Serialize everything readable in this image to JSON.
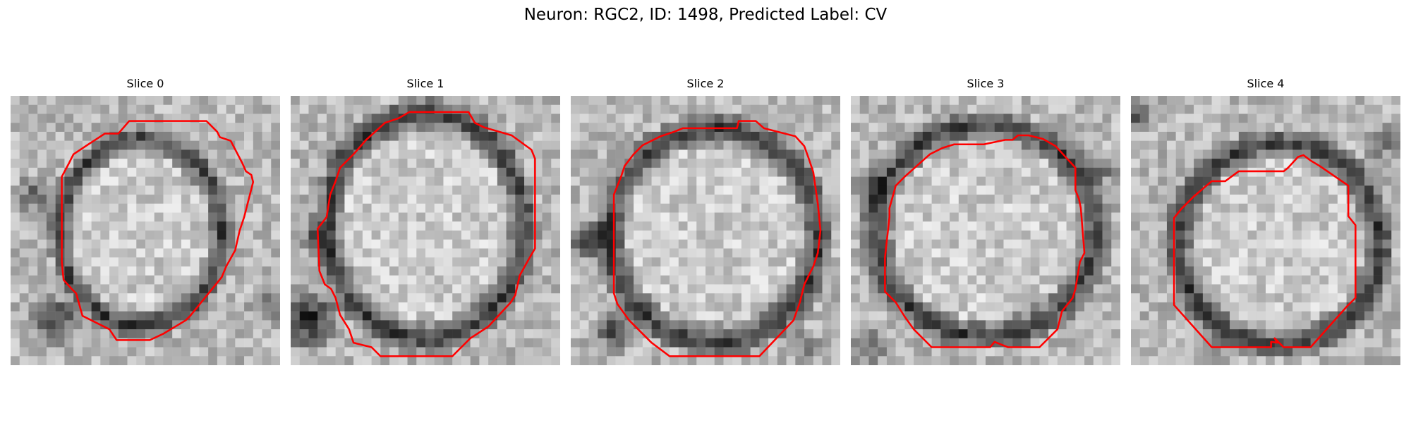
{
  "figure": {
    "title": "Neuron: RGC2, ID: 1498, Predicted Label: CV"
  },
  "panels": [
    {
      "title": "Slice 0"
    },
    {
      "title": "Slice 1"
    },
    {
      "title": "Slice 2"
    },
    {
      "title": "Slice 3"
    },
    {
      "title": "Slice 4"
    }
  ],
  "colors": {
    "contour": "#ff0000",
    "colormap": "grayscale"
  }
}
